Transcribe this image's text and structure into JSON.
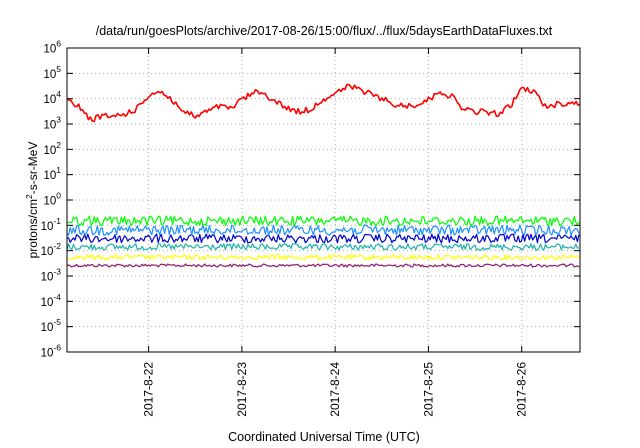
{
  "chart_data": {
    "type": "line",
    "title": "/data/run/goesPlots/archive/2017-08-26/15:00/flux/../flux/5daysEarthDataFluxes.txt",
    "xlabel": "Coordinated Universal Time (UTC)",
    "ylabel_parts": [
      "protons/cm",
      "2",
      "-s-sr-MeV"
    ],
    "xlim": [
      "2017-08-21T03:00",
      "2017-08-26T15:00"
    ],
    "ylim": [
      1e-06,
      1000000.0
    ],
    "yscale": "log",
    "grid": true,
    "legend": "none",
    "x_ticks": [
      {
        "x": "2017-08-22T00:00",
        "label": "2017-8-22"
      },
      {
        "x": "2017-08-23T00:00",
        "label": "2017-8-23"
      },
      {
        "x": "2017-08-24T00:00",
        "label": "2017-8-24"
      },
      {
        "x": "2017-08-25T00:00",
        "label": "2017-8-25"
      },
      {
        "x": "2017-08-26T00:00",
        "label": "2017-8-26"
      }
    ],
    "y_ticks": [
      {
        "exp": "6",
        "value": 1000000.0
      },
      {
        "exp": "5",
        "value": 100000.0
      },
      {
        "exp": "4",
        "value": 10000.0
      },
      {
        "exp": "3",
        "value": 1000.0
      },
      {
        "exp": "2",
        "value": 100.0
      },
      {
        "exp": "1",
        "value": 10.0
      },
      {
        "exp": "0",
        "value": 1.0
      },
      {
        "exp": "-1",
        "value": 0.1
      },
      {
        "exp": "-2",
        "value": 0.01
      },
      {
        "exp": "-3",
        "value": 0.001
      },
      {
        "exp": "-4",
        "value": 0.0001
      },
      {
        "exp": "-5",
        "value": 1e-05
      },
      {
        "exp": "-6",
        "value": 1e-06
      }
    ],
    "tick_base": "10",
    "series": [
      {
        "color": "#ff0000",
        "x": [
          "2017-08-21T03:00",
          "2017-08-21T06:00",
          "2017-08-21T09:00",
          "2017-08-21T12:00",
          "2017-08-21T15:00",
          "2017-08-21T18:00",
          "2017-08-21T21:00",
          "2017-08-22T00:00",
          "2017-08-22T03:00",
          "2017-08-22T06:00",
          "2017-08-22T09:00",
          "2017-08-22T12:00",
          "2017-08-22T15:00",
          "2017-08-22T18:00",
          "2017-08-22T21:00",
          "2017-08-23T00:00",
          "2017-08-23T03:00",
          "2017-08-23T06:00",
          "2017-08-23T09:00",
          "2017-08-23T12:00",
          "2017-08-23T15:00",
          "2017-08-23T18:00",
          "2017-08-23T21:00",
          "2017-08-24T00:00",
          "2017-08-24T03:00",
          "2017-08-24T06:00",
          "2017-08-24T09:00",
          "2017-08-24T12:00",
          "2017-08-24T15:00",
          "2017-08-24T18:00",
          "2017-08-24T21:00",
          "2017-08-25T00:00",
          "2017-08-25T03:00",
          "2017-08-25T06:00",
          "2017-08-25T09:00",
          "2017-08-25T12:00",
          "2017-08-25T15:00",
          "2017-08-25T18:00",
          "2017-08-25T21:00",
          "2017-08-26T00:00",
          "2017-08-26T03:00",
          "2017-08-26T06:00",
          "2017-08-26T09:00",
          "2017-08-26T12:00",
          "2017-08-26T15:00"
        ],
        "values": [
          8000,
          5000,
          1500,
          2000,
          2000,
          2500,
          4000,
          14000,
          20000,
          9000,
          3000,
          2000,
          3000,
          5000,
          4000,
          9000,
          18000,
          15000,
          7000,
          4000,
          3000,
          4000,
          10000,
          15000,
          30000,
          25000,
          15000,
          10000,
          6000,
          5000,
          6000,
          9000,
          20000,
          12000,
          4000,
          3000,
          3000,
          2500,
          5000,
          25000,
          20000,
          5000,
          6000,
          7000,
          6000
        ]
      },
      {
        "color": "#00ff00",
        "base": 0.15,
        "amp": 1.55
      },
      {
        "color": "#1e90ff",
        "base": 0.065,
        "amp": 1.6
      },
      {
        "color": "#0000cd",
        "base": 0.03,
        "amp": 1.5
      },
      {
        "color": "#20b2aa",
        "base": 0.014,
        "amp": 1.35
      },
      {
        "color": "#ffff00",
        "base": 0.0055,
        "amp": 1.25
      },
      {
        "color": "#8b1a6b",
        "base": 0.0026,
        "amp": 1.15
      }
    ]
  }
}
